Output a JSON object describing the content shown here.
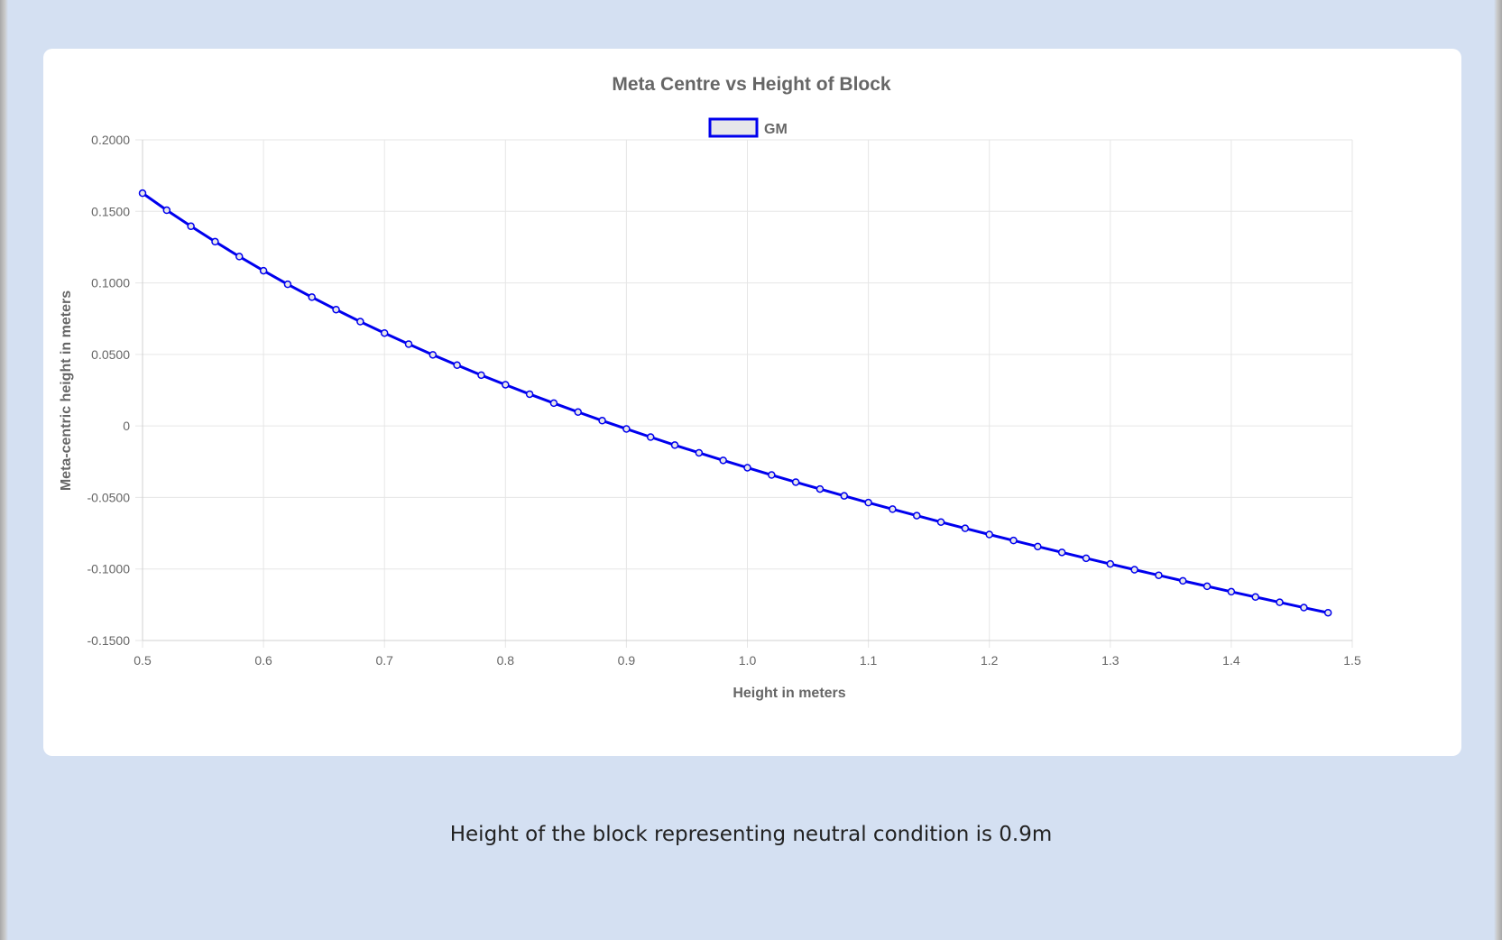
{
  "result": {
    "text": "Height of the block representing neutral condition is 0.9m"
  },
  "chart_data": {
    "type": "line",
    "title": "Meta Centre vs Height of Block",
    "xlabel": "Height in meters",
    "ylabel": "Meta-centric height in meters",
    "xlim": [
      0.5,
      1.5
    ],
    "ylim": [
      -0.15,
      0.2
    ],
    "x_ticks": [
      "0.5",
      "0.6",
      "0.7",
      "0.8",
      "0.9",
      "1.0",
      "1.1",
      "1.2",
      "1.3",
      "1.4",
      "1.5"
    ],
    "y_ticks": [
      "0.2000",
      "0.1500",
      "0.1000",
      "0.0500",
      "0",
      "-0.0500",
      "-0.1000",
      "-0.1500"
    ],
    "grid": true,
    "legend_position": "top",
    "series": [
      {
        "name": "GM",
        "color": "#0000ee",
        "legend_fill": "#e6e6ea",
        "x": [
          0.5,
          0.52,
          0.54,
          0.56,
          0.58,
          0.6,
          0.62,
          0.64,
          0.66,
          0.68,
          0.7,
          0.72,
          0.74,
          0.76,
          0.78,
          0.8,
          0.82,
          0.84,
          0.86,
          0.88,
          0.9,
          0.92,
          0.94,
          0.96,
          0.98,
          1.0,
          1.02,
          1.04,
          1.06,
          1.08,
          1.1,
          1.12,
          1.14,
          1.16,
          1.18,
          1.2,
          1.22,
          1.24,
          1.26,
          1.28,
          1.3,
          1.32,
          1.34,
          1.36,
          1.38,
          1.4,
          1.42,
          1.44,
          1.46,
          1.48
        ],
        "y": [
          0.1627,
          0.1508,
          0.1396,
          0.1288,
          0.1184,
          0.1085,
          0.099,
          0.09,
          0.0813,
          0.0729,
          0.0649,
          0.0572,
          0.0497,
          0.0425,
          0.0355,
          0.0288,
          0.0222,
          0.0159,
          0.0097,
          0.0037,
          -0.0021,
          -0.0078,
          -0.0134,
          -0.0188,
          -0.0241,
          -0.0292,
          -0.0343,
          -0.0393,
          -0.0441,
          -0.0489,
          -0.0536,
          -0.0582,
          -0.0627,
          -0.0672,
          -0.0716,
          -0.0759,
          -0.0801,
          -0.0843,
          -0.0884,
          -0.0925,
          -0.0965,
          -0.1005,
          -0.1044,
          -0.1083,
          -0.1121,
          -0.1159,
          -0.1196,
          -0.1233,
          -0.127,
          -0.1306
        ]
      }
    ]
  }
}
